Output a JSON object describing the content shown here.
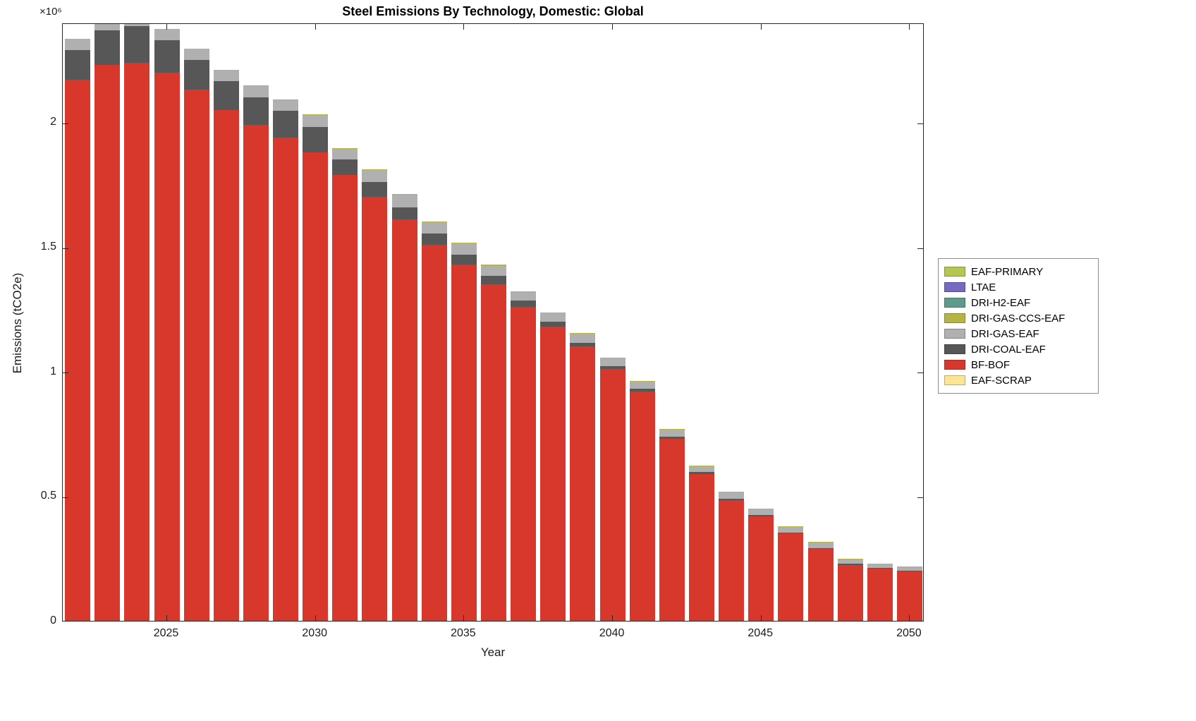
{
  "chart_data": {
    "type": "bar",
    "stacked": true,
    "title": "Steel Emissions By Technology, Domestic: Global",
    "xlabel": "Year",
    "ylabel": "Emissions (tCO2e)",
    "exponent_label": "×10⁶",
    "ylim": [
      0,
      2400000
    ],
    "yticks": [
      0,
      500000,
      1000000,
      1500000,
      2000000
    ],
    "ytick_labels": [
      "0",
      "0.5",
      "1",
      "1.5",
      "2"
    ],
    "xticks": [
      2025,
      2030,
      2035,
      2040,
      2045,
      2050
    ],
    "years": [
      2022,
      2023,
      2024,
      2025,
      2026,
      2027,
      2028,
      2029,
      2030,
      2031,
      2032,
      2033,
      2034,
      2035,
      2036,
      2037,
      2038,
      2039,
      2040,
      2041,
      2042,
      2043,
      2044,
      2045,
      2046,
      2047,
      2048,
      2049,
      2050
    ],
    "legend_order": [
      "EAF-PRIMARY",
      "LTAE",
      "DRI-H2-EAF",
      "DRI-GAS-CCS-EAF",
      "DRI-GAS-EAF",
      "DRI-COAL-EAF",
      "BF-BOF",
      "EAF-SCRAP"
    ],
    "series": [
      {
        "name": "EAF-SCRAP",
        "color": "#fde594",
        "values": [
          0,
          0,
          0,
          0,
          0,
          0,
          0,
          0,
          0,
          0,
          0,
          0,
          0,
          0,
          0,
          0,
          0,
          0,
          0,
          0,
          0,
          0,
          0,
          0,
          0,
          0,
          0,
          0,
          0
        ]
      },
      {
        "name": "BF-BOF",
        "color": "#d8382c",
        "values": [
          2170000,
          2230000,
          2240000,
          2200000,
          2130000,
          2050000,
          1990000,
          1940000,
          1880000,
          1790000,
          1700000,
          1610000,
          1510000,
          1430000,
          1350000,
          1260000,
          1180000,
          1100000,
          1010000,
          920000,
          730000,
          590000,
          485000,
          420000,
          350000,
          290000,
          225000,
          210000,
          200000
        ]
      },
      {
        "name": "DRI-COAL-EAF",
        "color": "#575757",
        "values": [
          120000,
          140000,
          145000,
          130000,
          120000,
          115000,
          110000,
          105000,
          100000,
          60000,
          60000,
          50000,
          45000,
          40000,
          35000,
          25000,
          20000,
          16000,
          12000,
          10000,
          8000,
          6000,
          5000,
          4000,
          4000,
          3000,
          3000,
          2000,
          2000
        ]
      },
      {
        "name": "DRI-GAS-EAF",
        "color": "#b0b0b0",
        "values": [
          45000,
          50000,
          50000,
          45000,
          45000,
          45000,
          45000,
          45000,
          50000,
          45000,
          50000,
          50000,
          45000,
          45000,
          40000,
          35000,
          35000,
          35000,
          30000,
          30000,
          28000,
          25000,
          25000,
          22000,
          22000,
          20000,
          18000,
          16000,
          15000
        ]
      },
      {
        "name": "DRI-GAS-CCS-EAF",
        "color": "#b6b445",
        "values": [
          0,
          0,
          0,
          0,
          0,
          0,
          2000,
          2000,
          2000,
          2000,
          2000,
          3000,
          3000,
          3000,
          3000,
          3000,
          3000,
          3000,
          3000,
          3000,
          3000,
          3000,
          3000,
          3000,
          3000,
          3000,
          3000,
          2000,
          2000
        ]
      },
      {
        "name": "DRI-H2-EAF",
        "color": "#5e9b8a",
        "values": [
          0,
          0,
          0,
          0,
          0,
          0,
          0,
          0,
          0,
          0,
          0,
          0,
          0,
          0,
          0,
          0,
          0,
          0,
          0,
          0,
          0,
          0,
          0,
          0,
          0,
          0,
          0,
          0,
          0
        ]
      },
      {
        "name": "LTAE",
        "color": "#7569c2",
        "values": [
          0,
          0,
          0,
          0,
          0,
          0,
          0,
          0,
          0,
          0,
          0,
          0,
          0,
          0,
          0,
          0,
          0,
          0,
          0,
          0,
          0,
          0,
          0,
          0,
          0,
          0,
          0,
          0,
          0
        ]
      },
      {
        "name": "EAF-PRIMARY",
        "color": "#b5c653",
        "values": [
          0,
          0,
          0,
          0,
          0,
          0,
          0,
          0,
          0,
          0,
          0,
          0,
          0,
          0,
          0,
          0,
          0,
          0,
          0,
          0,
          0,
          0,
          0,
          0,
          0,
          0,
          0,
          0,
          0
        ]
      }
    ]
  }
}
